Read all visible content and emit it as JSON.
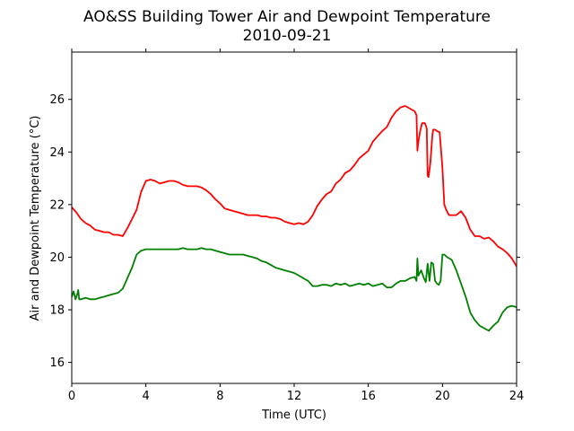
{
  "chart_data": {
    "type": "line",
    "title": "AO&SS Building Tower Air and Dewpoint Temperature",
    "subtitle": "2010-09-21",
    "xlabel": "Time (UTC)",
    "ylabel": "Air and Dewpoint Temperature (°C)",
    "xlim": [
      0,
      24
    ],
    "ylim": [
      15.2,
      27.8
    ],
    "xticks": [
      0,
      4,
      8,
      12,
      16,
      20,
      24
    ],
    "yticks": [
      16,
      18,
      20,
      22,
      24,
      26
    ],
    "grid": false,
    "colors": {
      "air": "#ff0000",
      "dewpoint": "#008000"
    },
    "series": [
      {
        "key": "air",
        "color": "#ff0000",
        "x": [
          0,
          0.25,
          0.5,
          0.75,
          1,
          1.25,
          1.5,
          1.75,
          2,
          2.25,
          2.5,
          2.75,
          3,
          3.25,
          3.5,
          3.75,
          4,
          4.25,
          4.5,
          4.75,
          5,
          5.25,
          5.5,
          5.75,
          6,
          6.25,
          6.5,
          6.75,
          7,
          7.25,
          7.5,
          7.75,
          8,
          8.25,
          8.5,
          8.75,
          9,
          9.25,
          9.5,
          9.75,
          10,
          10.25,
          10.5,
          10.75,
          11,
          11.25,
          11.5,
          11.75,
          12,
          12.25,
          12.5,
          12.75,
          13,
          13.25,
          13.5,
          13.75,
          14,
          14.25,
          14.5,
          14.75,
          15,
          15.25,
          15.5,
          15.75,
          16,
          16.25,
          16.5,
          16.75,
          17,
          17.25,
          17.5,
          17.75,
          18,
          18.25,
          18.5,
          18.6,
          18.65,
          18.7,
          18.8,
          18.9,
          19.05,
          19.15,
          19.2,
          19.25,
          19.35,
          19.45,
          19.5,
          19.6,
          19.7,
          19.85,
          20,
          20.1,
          20.2,
          20.35,
          20.5,
          20.75,
          21,
          21.25,
          21.5,
          21.75,
          22,
          22.25,
          22.5,
          22.75,
          23,
          23.25,
          23.5,
          23.75,
          24
        ],
        "y": [
          21.9,
          21.7,
          21.45,
          21.3,
          21.2,
          21.05,
          21.0,
          20.95,
          20.95,
          20.85,
          20.85,
          20.8,
          21.1,
          21.45,
          21.8,
          22.5,
          22.9,
          22.95,
          22.9,
          22.8,
          22.85,
          22.9,
          22.9,
          22.85,
          22.75,
          22.7,
          22.7,
          22.7,
          22.65,
          22.55,
          22.4,
          22.2,
          22.05,
          21.85,
          21.8,
          21.75,
          21.7,
          21.65,
          21.6,
          21.6,
          21.6,
          21.55,
          21.55,
          21.5,
          21.5,
          21.45,
          21.35,
          21.3,
          21.25,
          21.3,
          21.25,
          21.35,
          21.6,
          21.95,
          22.2,
          22.4,
          22.5,
          22.8,
          22.95,
          23.2,
          23.3,
          23.5,
          23.75,
          23.9,
          24.05,
          24.4,
          24.6,
          24.8,
          24.95,
          25.3,
          25.55,
          25.7,
          25.75,
          25.65,
          25.55,
          25.4,
          24.05,
          24.4,
          24.8,
          25.1,
          25.1,
          24.9,
          23.1,
          23.05,
          23.6,
          24.6,
          24.85,
          24.85,
          24.8,
          24.75,
          23.4,
          22.0,
          21.8,
          21.6,
          21.6,
          21.6,
          21.75,
          21.5,
          21.05,
          20.8,
          20.8,
          20.7,
          20.75,
          20.6,
          20.4,
          20.3,
          20.15,
          19.95,
          19.65
        ]
      },
      {
        "key": "dewpoint",
        "color": "#008000",
        "x": [
          0,
          0.1,
          0.2,
          0.3,
          0.35,
          0.4,
          0.5,
          0.75,
          1,
          1.25,
          1.5,
          1.75,
          2,
          2.25,
          2.5,
          2.75,
          3,
          3.25,
          3.5,
          3.75,
          4,
          4.25,
          4.5,
          4.75,
          5,
          5.25,
          5.5,
          5.75,
          6,
          6.25,
          6.5,
          6.75,
          7,
          7.25,
          7.5,
          7.75,
          8,
          8.25,
          8.5,
          8.75,
          9,
          9.25,
          9.5,
          9.75,
          10,
          10.25,
          10.5,
          10.75,
          11,
          11.25,
          11.5,
          11.75,
          12,
          12.25,
          12.5,
          12.75,
          13,
          13.25,
          13.5,
          13.75,
          14,
          14.25,
          14.5,
          14.75,
          15,
          15.25,
          15.5,
          15.75,
          16,
          16.25,
          16.5,
          16.75,
          17,
          17.25,
          17.5,
          17.75,
          18,
          18.25,
          18.5,
          18.6,
          18.65,
          18.7,
          18.85,
          19,
          19.1,
          19.2,
          19.3,
          19.4,
          19.5,
          19.6,
          19.7,
          19.8,
          19.9,
          20,
          20.1,
          20.25,
          20.5,
          20.75,
          21,
          21.25,
          21.5,
          21.75,
          22,
          22.25,
          22.5,
          22.75,
          23,
          23.25,
          23.5,
          23.75,
          24
        ],
        "y": [
          18.5,
          18.7,
          18.4,
          18.6,
          18.75,
          18.4,
          18.4,
          18.45,
          18.4,
          18.4,
          18.45,
          18.5,
          18.55,
          18.6,
          18.65,
          18.8,
          19.2,
          19.6,
          20.1,
          20.25,
          20.3,
          20.3,
          20.3,
          20.3,
          20.3,
          20.3,
          20.3,
          20.3,
          20.35,
          20.3,
          20.3,
          20.3,
          20.35,
          20.3,
          20.3,
          20.25,
          20.2,
          20.15,
          20.1,
          20.1,
          20.1,
          20.1,
          20.05,
          20.0,
          19.95,
          19.85,
          19.8,
          19.7,
          19.6,
          19.55,
          19.5,
          19.45,
          19.4,
          19.3,
          19.2,
          19.1,
          18.9,
          18.9,
          18.95,
          18.95,
          18.9,
          19.0,
          18.95,
          19.0,
          18.9,
          18.95,
          19.0,
          18.95,
          19.0,
          18.9,
          18.95,
          19.0,
          18.85,
          18.85,
          19.0,
          19.1,
          19.1,
          19.2,
          19.25,
          19.1,
          19.95,
          19.3,
          19.5,
          19.2,
          19.05,
          19.75,
          19.1,
          19.8,
          19.75,
          19.1,
          19.0,
          18.95,
          19.1,
          20.1,
          20.1,
          20.0,
          19.9,
          19.5,
          19.0,
          18.5,
          17.9,
          17.6,
          17.4,
          17.3,
          17.2,
          17.4,
          17.55,
          17.9,
          18.1,
          18.15,
          18.1
        ]
      }
    ]
  }
}
